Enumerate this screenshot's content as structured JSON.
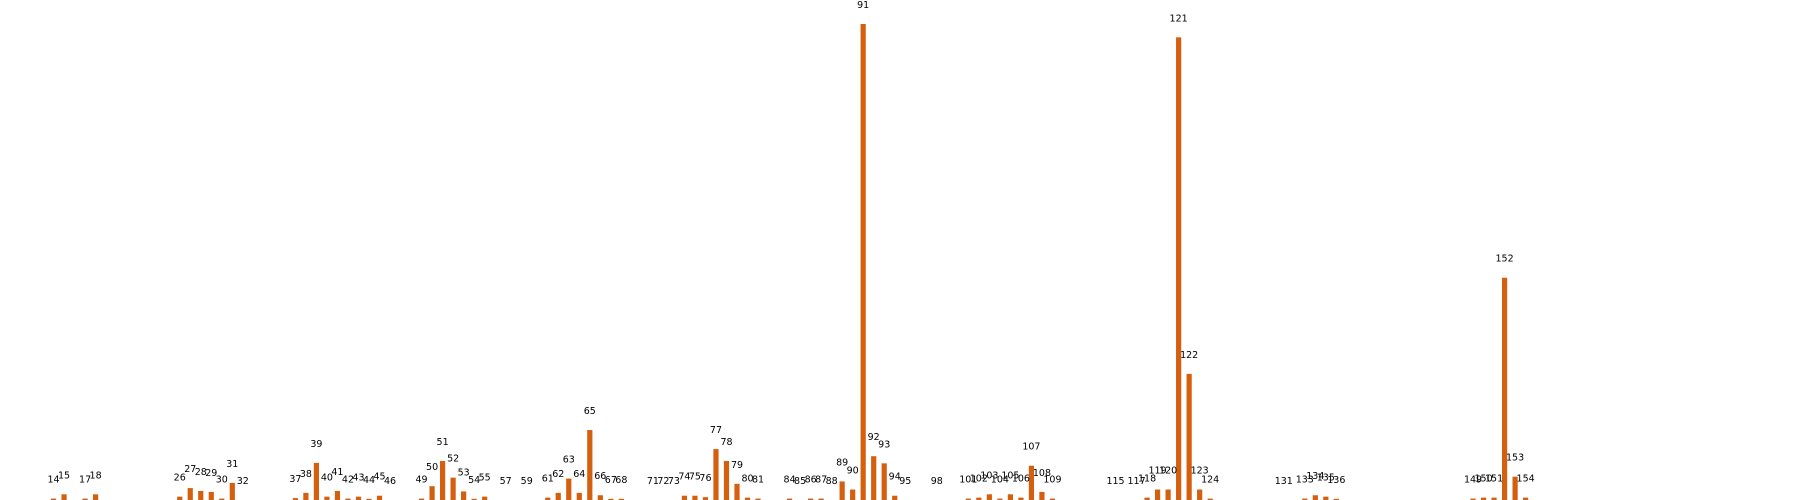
{
  "chart_data": {
    "type": "bar",
    "title": "",
    "xlabel": "",
    "ylabel": "",
    "grid": false,
    "bar_color": "#d4600f",
    "x_range": [
      11,
      180
    ],
    "ylim": [
      0,
      1.0
    ],
    "points": [
      {
        "x": 14,
        "label": "14",
        "value": 0.003
      },
      {
        "x": 15,
        "label": "15",
        "value": 0.012
      },
      {
        "x": 17,
        "label": "17",
        "value": 0.003
      },
      {
        "x": 18,
        "label": "18",
        "value": 0.012
      },
      {
        "x": 26,
        "label": "26",
        "value": 0.007
      },
      {
        "x": 27,
        "label": "27",
        "value": 0.025
      },
      {
        "x": 28,
        "label": "28",
        "value": 0.019
      },
      {
        "x": 29,
        "label": "29",
        "value": 0.017
      },
      {
        "x": 30,
        "label": "30",
        "value": 0.003
      },
      {
        "x": 31,
        "label": "31",
        "value": 0.036
      },
      {
        "x": 32,
        "label": "32",
        "value": 0.0
      },
      {
        "x": 37,
        "label": "37",
        "value": 0.004
      },
      {
        "x": 38,
        "label": "38",
        "value": 0.015
      },
      {
        "x": 39,
        "label": "39",
        "value": 0.078
      },
      {
        "x": 40,
        "label": "40",
        "value": 0.007
      },
      {
        "x": 41,
        "label": "41",
        "value": 0.019
      },
      {
        "x": 42,
        "label": "42",
        "value": 0.003
      },
      {
        "x": 43,
        "label": "43",
        "value": 0.007
      },
      {
        "x": 44,
        "label": "44",
        "value": 0.002
      },
      {
        "x": 45,
        "label": "45",
        "value": 0.009
      },
      {
        "x": 46,
        "label": "46",
        "value": 0.0
      },
      {
        "x": 49,
        "label": "49",
        "value": 0.003
      },
      {
        "x": 50,
        "label": "50",
        "value": 0.029
      },
      {
        "x": 51,
        "label": "51",
        "value": 0.082
      },
      {
        "x": 52,
        "label": "52",
        "value": 0.047
      },
      {
        "x": 53,
        "label": "53",
        "value": 0.018
      },
      {
        "x": 54,
        "label": "54",
        "value": 0.002
      },
      {
        "x": 55,
        "label": "55",
        "value": 0.007
      },
      {
        "x": 57,
        "label": "57",
        "value": 0.0
      },
      {
        "x": 59,
        "label": "59",
        "value": 0.0
      },
      {
        "x": 61,
        "label": "61",
        "value": 0.005
      },
      {
        "x": 62,
        "label": "62",
        "value": 0.015
      },
      {
        "x": 63,
        "label": "63",
        "value": 0.045
      },
      {
        "x": 64,
        "label": "64",
        "value": 0.015
      },
      {
        "x": 65,
        "label": "65",
        "value": 0.147
      },
      {
        "x": 66,
        "label": "66",
        "value": 0.01
      },
      {
        "x": 67,
        "label": "67",
        "value": 0.002
      },
      {
        "x": 68,
        "label": "68",
        "value": 0.002
      },
      {
        "x": 71,
        "label": "71",
        "value": 0.0
      },
      {
        "x": 72,
        "label": "72",
        "value": 0.0
      },
      {
        "x": 73,
        "label": "73",
        "value": 0.0
      },
      {
        "x": 74,
        "label": "74",
        "value": 0.009
      },
      {
        "x": 75,
        "label": "75",
        "value": 0.009
      },
      {
        "x": 76,
        "label": "76",
        "value": 0.006
      },
      {
        "x": 77,
        "label": "77",
        "value": 0.107
      },
      {
        "x": 78,
        "label": "78",
        "value": 0.082
      },
      {
        "x": 79,
        "label": "79",
        "value": 0.034
      },
      {
        "x": 80,
        "label": "80",
        "value": 0.005
      },
      {
        "x": 81,
        "label": "81",
        "value": 0.003
      },
      {
        "x": 84,
        "label": "84",
        "value": 0.003
      },
      {
        "x": 85,
        "label": "85",
        "value": 0.0
      },
      {
        "x": 86,
        "label": "86",
        "value": 0.003
      },
      {
        "x": 87,
        "label": "87",
        "value": 0.003
      },
      {
        "x": 88,
        "label": "88",
        "value": 0.0
      },
      {
        "x": 89,
        "label": "89",
        "value": 0.039
      },
      {
        "x": 90,
        "label": "90",
        "value": 0.022
      },
      {
        "x": 91,
        "label": "91",
        "value": 1.0
      },
      {
        "x": 92,
        "label": "92",
        "value": 0.092
      },
      {
        "x": 93,
        "label": "93",
        "value": 0.077
      },
      {
        "x": 94,
        "label": "94",
        "value": 0.009
      },
      {
        "x": 95,
        "label": "95",
        "value": 0.0
      },
      {
        "x": 98,
        "label": "98",
        "value": 0.0
      },
      {
        "x": 101,
        "label": "101",
        "value": 0.003
      },
      {
        "x": 102,
        "label": "102",
        "value": 0.005
      },
      {
        "x": 103,
        "label": "103",
        "value": 0.012
      },
      {
        "x": 104,
        "label": "104",
        "value": 0.003
      },
      {
        "x": 105,
        "label": "105",
        "value": 0.012
      },
      {
        "x": 106,
        "label": "106",
        "value": 0.005
      },
      {
        "x": 107,
        "label": "107",
        "value": 0.072
      },
      {
        "x": 108,
        "label": "108",
        "value": 0.017
      },
      {
        "x": 109,
        "label": "109",
        "value": 0.003
      },
      {
        "x": 115,
        "label": "115",
        "value": 0.0
      },
      {
        "x": 117,
        "label": "117",
        "value": 0.0
      },
      {
        "x": 118,
        "label": "118",
        "value": 0.005
      },
      {
        "x": 119,
        "label": "119",
        "value": 0.022
      },
      {
        "x": 120,
        "label": "120",
        "value": 0.022
      },
      {
        "x": 121,
        "label": "121",
        "value": 0.972
      },
      {
        "x": 122,
        "label": "122",
        "value": 0.265
      },
      {
        "x": 123,
        "label": "123",
        "value": 0.022
      },
      {
        "x": 124,
        "label": "124",
        "value": 0.003
      },
      {
        "x": 131,
        "label": "131",
        "value": 0.0
      },
      {
        "x": 133,
        "label": "133",
        "value": 0.003
      },
      {
        "x": 134,
        "label": "134",
        "value": 0.01
      },
      {
        "x": 135,
        "label": "135",
        "value": 0.007
      },
      {
        "x": 136,
        "label": "136",
        "value": 0.002
      },
      {
        "x": 149,
        "label": "149",
        "value": 0.003
      },
      {
        "x": 150,
        "label": "150",
        "value": 0.005
      },
      {
        "x": 151,
        "label": "151",
        "value": 0.005
      },
      {
        "x": 152,
        "label": "152",
        "value": 0.467
      },
      {
        "x": 153,
        "label": "153",
        "value": 0.049
      },
      {
        "x": 154,
        "label": "154",
        "value": 0.005
      }
    ]
  }
}
